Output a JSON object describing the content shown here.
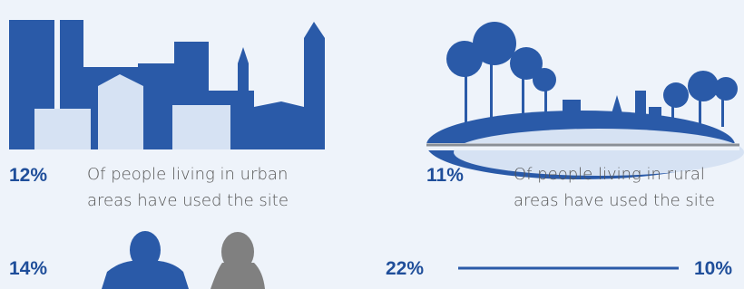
{
  "urban": {
    "percent": "12%",
    "line1": "Of people living in urban",
    "line2": "areas have used the site"
  },
  "rural": {
    "percent": "11%",
    "line1": "Of people living in rural",
    "line2": "areas have used the site"
  },
  "gender": {
    "male": "14%"
  },
  "age": {
    "left": "22%",
    "right": "10%"
  }
}
